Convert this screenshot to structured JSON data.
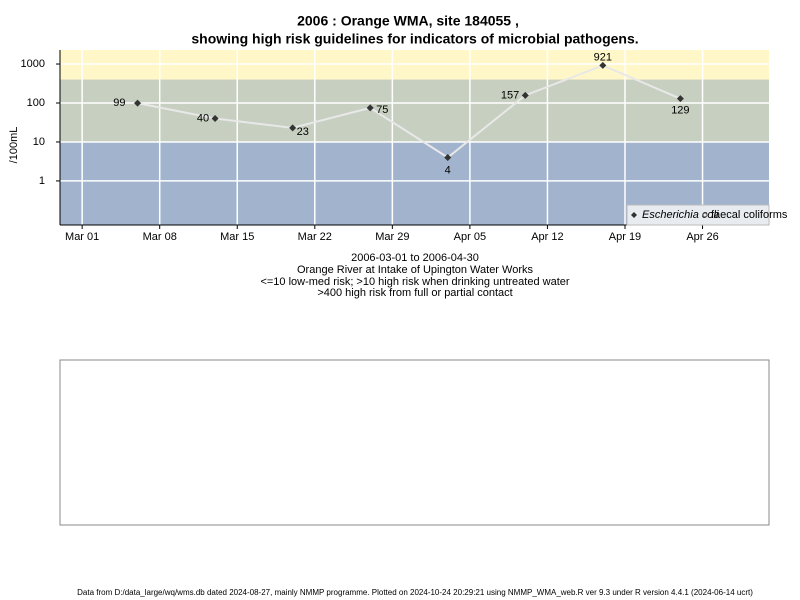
{
  "chart_data": {
    "type": "line",
    "title": [
      "2006 : Orange WMA, site 184055 ,",
      "showing high risk guidelines for indicators of microbial pathogens."
    ],
    "subtitle": [
      "2006-03-01 to 2006-04-30",
      "Orange River at Intake of Upington Water Works",
      "<=10 low-med risk; >10 high risk when drinking untreated water",
      ">400 high risk from full or partial contact"
    ],
    "y_label": "/100mL",
    "log_y": true,
    "grid": true,
    "legend": "bottom-right",
    "x": [
      "2006-03-06",
      "2006-03-13",
      "2006-03-20",
      "2006-03-27",
      "2006-04-03",
      "2006-04-10",
      "2006-04-17",
      "2006-04-24"
    ],
    "series": [
      {
        "name": "Escherichia coli",
        "color": "#333333",
        "values": [
          99,
          40,
          23,
          75,
          4,
          157,
          921,
          129
        ]
      },
      {
        "name": "faecal coliforms",
        "color": "#555555",
        "values": [
          null,
          null,
          null,
          null,
          null,
          null,
          null,
          null
        ]
      }
    ],
    "bands": [
      {
        "upper": 10,
        "color": "#a1b3cd"
      },
      {
        "lower": 10,
        "upper": 400,
        "color": "#c7cfc0"
      },
      {
        "lower": 400,
        "color": "#fff7c8"
      }
    ],
    "xlim": [
      "2006-02-27",
      "2006-05-02"
    ],
    "xticks": [
      {
        "value": "2006-03-01",
        "label": "Mar 01"
      },
      {
        "value": "2006-03-08",
        "label": "Mar 08"
      },
      {
        "value": "2006-03-15",
        "label": "Mar 15"
      },
      {
        "value": "2006-03-22",
        "label": "Mar 22"
      },
      {
        "value": "2006-03-29",
        "label": "Mar 29"
      },
      {
        "value": "2006-04-05",
        "label": "Apr 05"
      },
      {
        "value": "2006-04-12",
        "label": "Apr 12"
      },
      {
        "value": "2006-04-19",
        "label": "Apr 19"
      },
      {
        "value": "2006-04-26",
        "label": "Apr 26"
      }
    ],
    "ylim": [
      0.074,
      2290
    ],
    "yticks": [
      1,
      10,
      100,
      1000
    ],
    "footer": "Data from D:/data_large/wq/wms.db dated 2024-08-27, mainly NMMP programme. Plotted on 2024-10-24 20:29:21 using NMMP_WMA_web.R ver 9.3 under R version 4.4.1 (2024-06-14 ucrt)"
  }
}
